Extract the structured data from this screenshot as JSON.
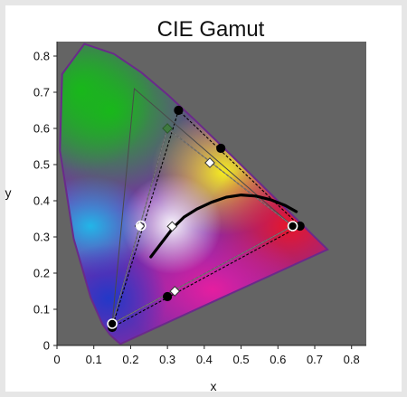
{
  "chart_data": {
    "type": "scatter",
    "title": "CIE Gamut",
    "xlabel": "x",
    "ylabel": "y",
    "xlim": [
      0,
      0.84
    ],
    "ylim": [
      0,
      0.84
    ],
    "xticks": [
      "0",
      "0.1",
      "0.2",
      "0.3",
      "0.4",
      "0.5",
      "0.6",
      "0.7",
      "0.8"
    ],
    "yticks": [
      "0",
      "0.1",
      "0.2",
      "0.3",
      "0.4",
      "0.5",
      "0.6",
      "0.7",
      "0.8"
    ],
    "grid": false,
    "background_color": "#646464",
    "locus_outline_color": "#6a2a8a",
    "spectral_locus": [
      [
        0.1741,
        0.005
      ],
      [
        0.1738,
        0.0049
      ],
      [
        0.173,
        0.0048
      ],
      [
        0.1714,
        0.0051
      ],
      [
        0.1689,
        0.0069
      ],
      [
        0.1644,
        0.0109
      ],
      [
        0.1566,
        0.0177
      ],
      [
        0.144,
        0.0297
      ],
      [
        0.1241,
        0.0578
      ],
      [
        0.0913,
        0.1327
      ],
      [
        0.0454,
        0.295
      ],
      [
        0.0082,
        0.5384
      ],
      [
        0.0139,
        0.7502
      ],
      [
        0.0743,
        0.8338
      ],
      [
        0.1547,
        0.8059
      ],
      [
        0.2296,
        0.7543
      ],
      [
        0.3016,
        0.6923
      ],
      [
        0.3731,
        0.6245
      ],
      [
        0.4441,
        0.5547
      ],
      [
        0.5125,
        0.4866
      ],
      [
        0.5752,
        0.4242
      ],
      [
        0.627,
        0.3725
      ],
      [
        0.6658,
        0.334
      ],
      [
        0.6915,
        0.3083
      ],
      [
        0.7079,
        0.292
      ],
      [
        0.719,
        0.2809
      ],
      [
        0.726,
        0.274
      ],
      [
        0.7347,
        0.2653
      ]
    ],
    "series": [
      {
        "marker": "circle",
        "line": "dashed",
        "color": "#000000",
        "points": [
          [
            0.64,
            0.33
          ],
          [
            0.3,
            0.6
          ],
          [
            0.15,
            0.06
          ]
        ]
      },
      {
        "marker": "circle",
        "line": "dashed",
        "color": "#000000",
        "points": [
          [
            0.66,
            0.33
          ],
          [
            0.33,
            0.65
          ],
          [
            0.15,
            0.05
          ]
        ]
      },
      {
        "marker": "circle-open",
        "line": "solid",
        "color": "#4a4a4a",
        "points": [
          [
            0.64,
            0.33
          ],
          [
            0.21,
            0.71
          ],
          [
            0.15,
            0.06
          ]
        ]
      },
      {
        "marker": "diamond-open",
        "line": "solid",
        "color": "#7a7a7a",
        "points": [
          [
            0.64,
            0.33
          ],
          [
            0.3,
            0.6
          ],
          [
            0.15,
            0.06
          ],
          [
            0.415,
            0.505
          ],
          [
            0.225,
            0.33
          ],
          [
            0.32,
            0.15
          ]
        ]
      }
    ],
    "extra_points": [
      {
        "marker": "circle",
        "x": 0.445,
        "y": 0.545
      },
      {
        "marker": "circle",
        "x": 0.3,
        "y": 0.135
      },
      {
        "marker": "circle-open",
        "x": 0.228,
        "y": 0.331
      },
      {
        "marker": "diamond-open",
        "x": 0.3127,
        "y": 0.329
      },
      {
        "marker": "diamond-filled",
        "x": 0.3,
        "y": 0.6
      }
    ],
    "planckian_locus": [
      [
        0.255,
        0.245
      ],
      [
        0.285,
        0.285
      ],
      [
        0.315,
        0.325
      ],
      [
        0.345,
        0.355
      ],
      [
        0.38,
        0.377
      ],
      [
        0.42,
        0.396
      ],
      [
        0.46,
        0.41
      ],
      [
        0.5,
        0.416
      ],
      [
        0.54,
        0.413
      ],
      [
        0.58,
        0.403
      ],
      [
        0.62,
        0.387
      ],
      [
        0.65,
        0.37
      ]
    ]
  }
}
